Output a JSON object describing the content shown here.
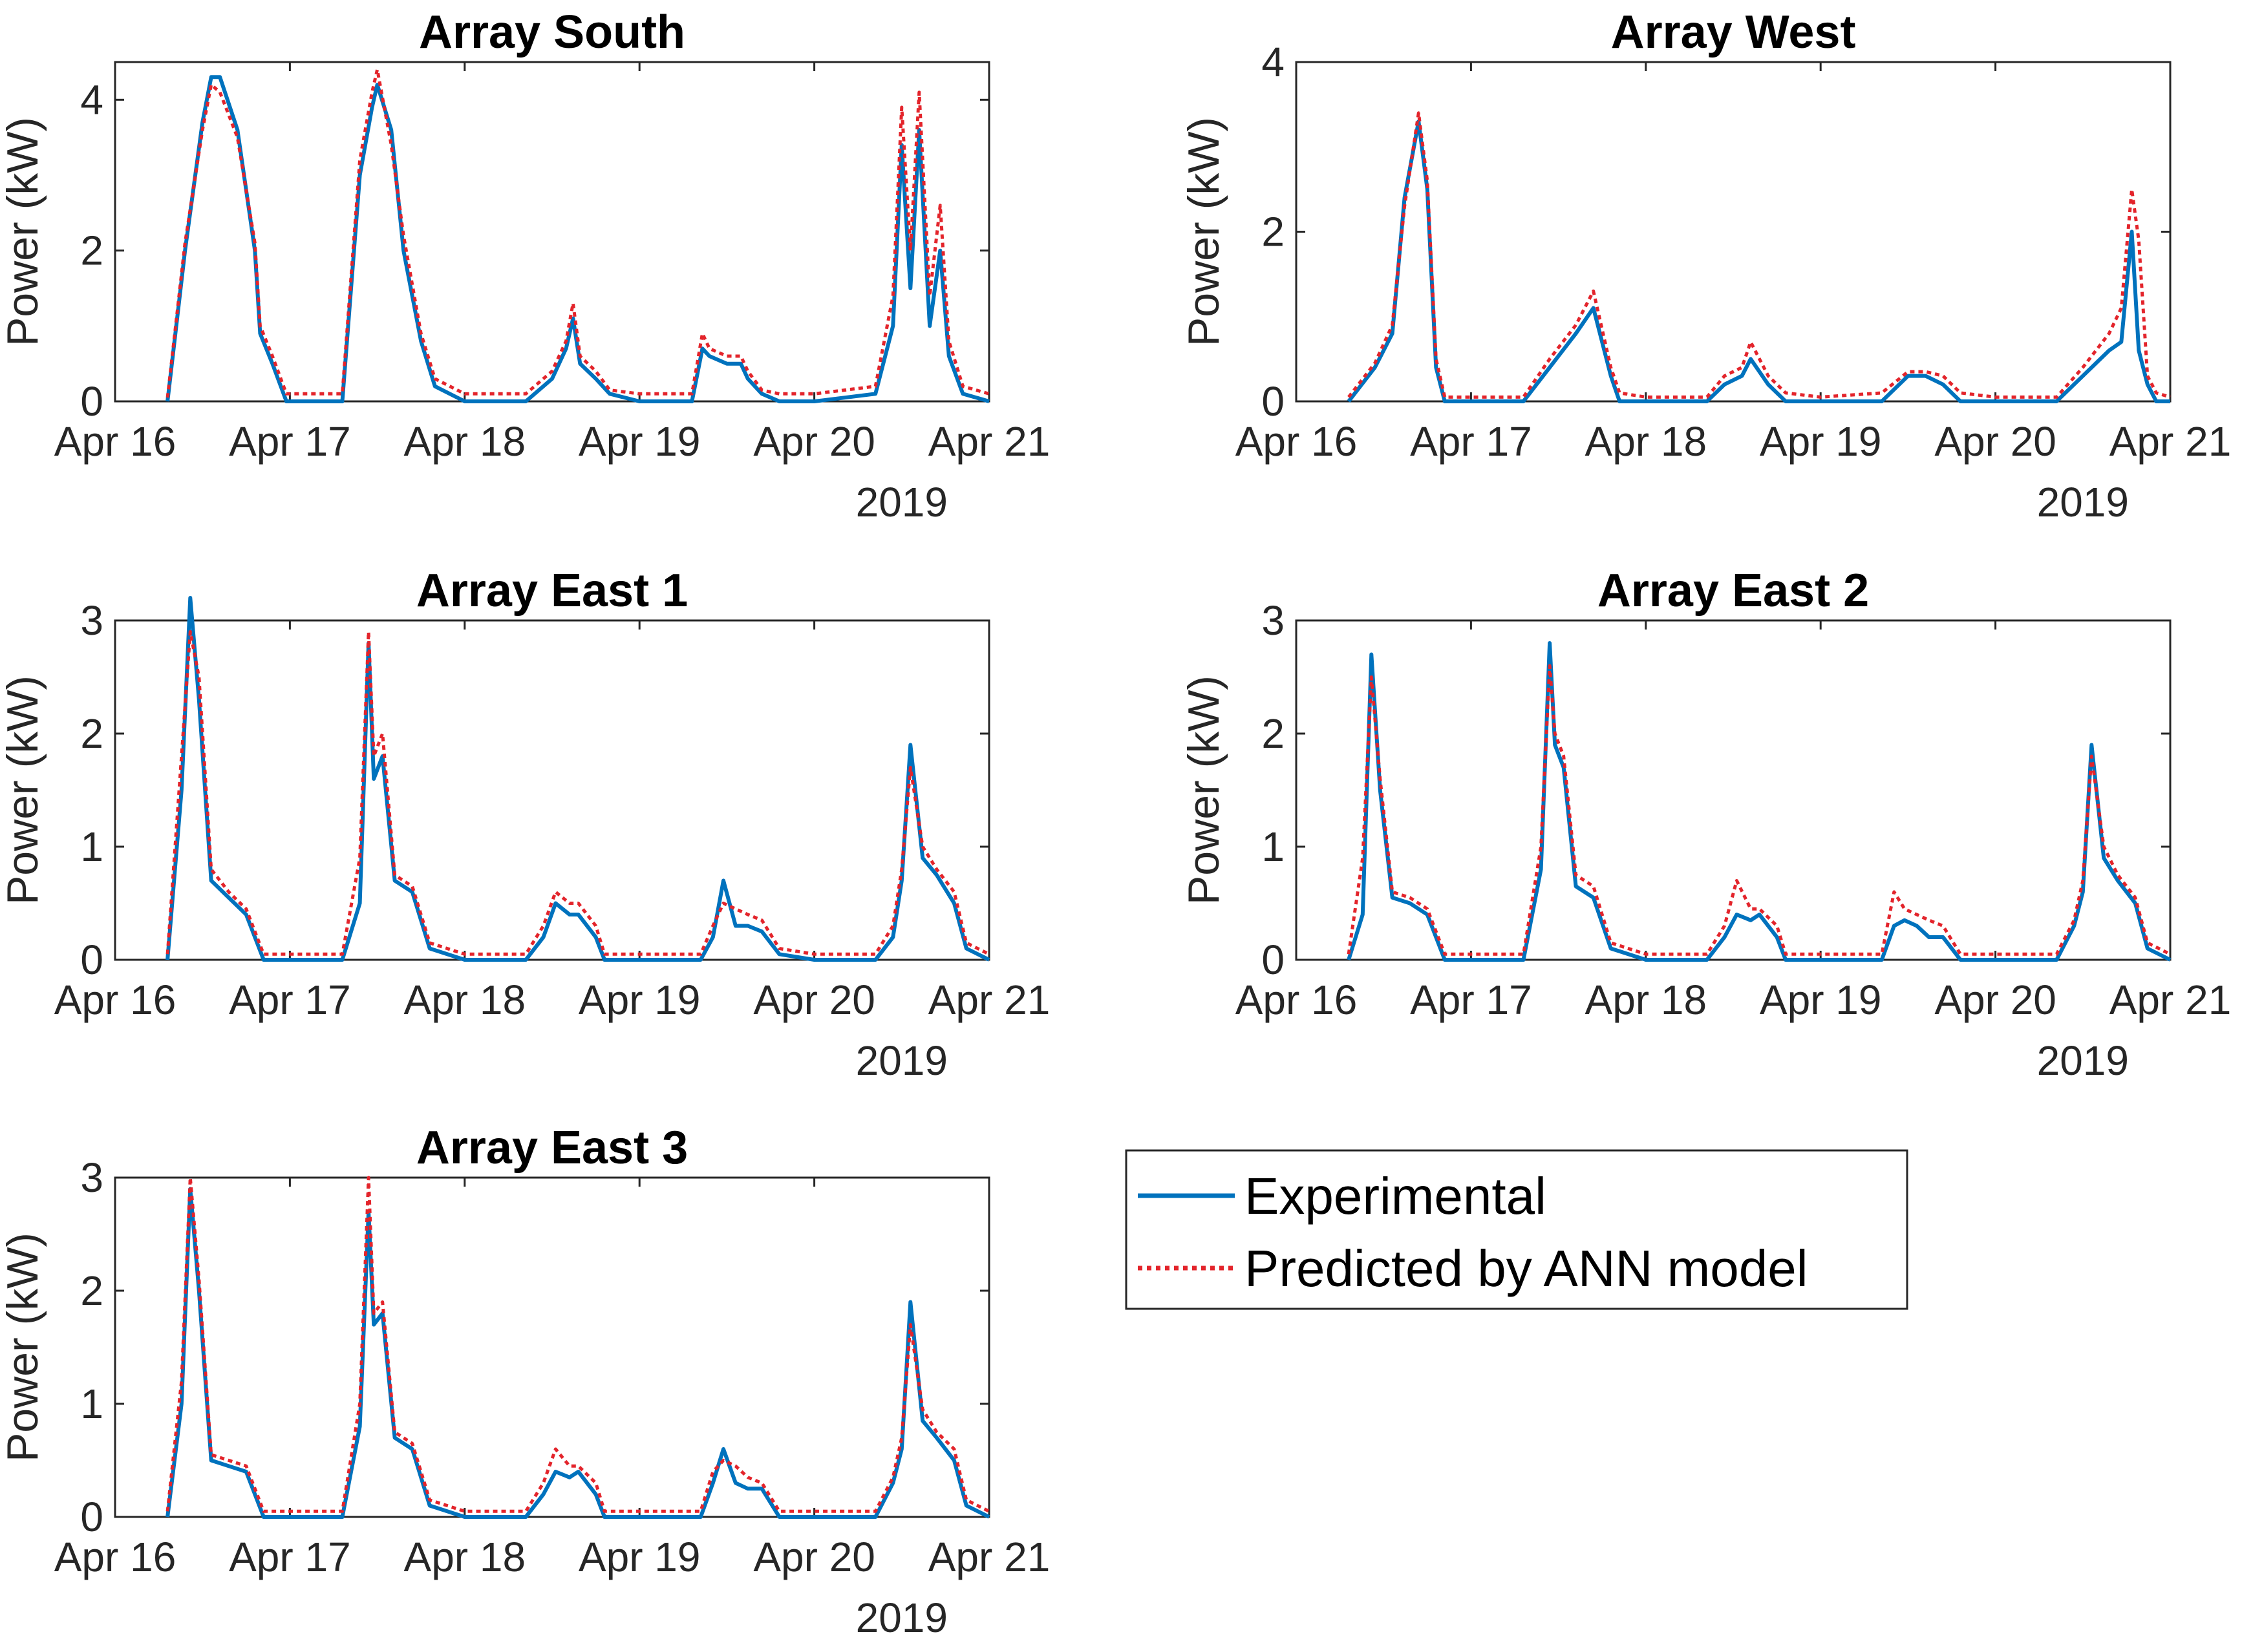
{
  "chart_data": [
    {
      "type": "line",
      "title": "Array South",
      "ylabel": "Power (kW)",
      "xlabel": "2019",
      "ylim": [
        0,
        4.5
      ],
      "yticks": [
        "0",
        "2",
        "4"
      ],
      "ytick_values": [
        0,
        2,
        4
      ],
      "xlim": [
        16,
        21
      ],
      "x_ticks": [
        "Apr 16",
        "Apr 17",
        "Apr 18",
        "Apr 19",
        "Apr 20",
        "Apr 21"
      ],
      "series": [
        {
          "name": "Experimental",
          "x": [
            16.3,
            16.4,
            16.5,
            16.55,
            16.6,
            16.7,
            16.8,
            16.83,
            16.9,
            16.98,
            17.0,
            17.3,
            17.4,
            17.47,
            17.5,
            17.58,
            17.65,
            17.75,
            17.83,
            18.0,
            18.35,
            18.5,
            18.58,
            18.62,
            18.66,
            18.75,
            18.83,
            19.0,
            19.3,
            19.36,
            19.4,
            19.5,
            19.58,
            19.62,
            19.7,
            19.8,
            20.0,
            20.35,
            20.45,
            20.5,
            20.55,
            20.6,
            20.66,
            20.72,
            20.77,
            20.85,
            21.0
          ],
          "y": [
            0,
            2.0,
            3.7,
            4.3,
            4.3,
            3.6,
            2.0,
            0.9,
            0.5,
            0,
            0,
            0,
            3.0,
            3.9,
            4.2,
            3.6,
            2.0,
            0.8,
            0.2,
            0,
            0,
            0.3,
            0.7,
            1.1,
            0.5,
            0.3,
            0.1,
            0,
            0,
            0.7,
            0.6,
            0.5,
            0.5,
            0.3,
            0.1,
            0,
            0,
            0.1,
            1.0,
            3.4,
            1.5,
            3.6,
            1.0,
            2.0,
            0.6,
            0.1,
            0
          ]
        },
        {
          "name": "Predicted by ANN model",
          "x": [
            16.3,
            16.4,
            16.5,
            16.55,
            16.6,
            16.7,
            16.8,
            16.83,
            16.9,
            16.98,
            17.0,
            17.3,
            17.4,
            17.47,
            17.5,
            17.58,
            17.65,
            17.75,
            17.83,
            18.0,
            18.35,
            18.5,
            18.58,
            18.62,
            18.66,
            18.75,
            18.83,
            19.0,
            19.3,
            19.36,
            19.4,
            19.5,
            19.58,
            19.62,
            19.7,
            19.8,
            20.0,
            20.35,
            20.45,
            20.5,
            20.55,
            20.6,
            20.66,
            20.72,
            20.77,
            20.85,
            21.0
          ],
          "y": [
            0.05,
            2.1,
            3.6,
            4.2,
            4.1,
            3.5,
            2.1,
            1.0,
            0.6,
            0.1,
            0.1,
            0.1,
            3.2,
            4.1,
            4.4,
            3.4,
            2.2,
            0.9,
            0.3,
            0.1,
            0.1,
            0.4,
            0.8,
            1.3,
            0.6,
            0.4,
            0.15,
            0.1,
            0.1,
            0.9,
            0.7,
            0.6,
            0.6,
            0.4,
            0.15,
            0.1,
            0.1,
            0.2,
            1.4,
            3.9,
            2.0,
            4.1,
            1.4,
            2.6,
            0.8,
            0.2,
            0.1
          ]
        }
      ]
    },
    {
      "type": "line",
      "title": "Array West",
      "ylabel": "Power (kW)",
      "xlabel": "2019",
      "ylim": [
        0,
        4
      ],
      "yticks": [
        "0",
        "2",
        "4"
      ],
      "ytick_values": [
        0,
        2,
        4
      ],
      "xlim": [
        16,
        21
      ],
      "x_ticks": [
        "Apr 16",
        "Apr 17",
        "Apr 18",
        "Apr 19",
        "Apr 20",
        "Apr 21"
      ],
      "series": [
        {
          "name": "Experimental",
          "x": [
            16.3,
            16.45,
            16.55,
            16.62,
            16.7,
            16.75,
            16.8,
            16.85,
            16.9,
            17.0,
            17.3,
            17.45,
            17.6,
            17.7,
            17.8,
            17.85,
            18.0,
            18.35,
            18.45,
            18.55,
            18.6,
            18.7,
            18.8,
            19.0,
            19.35,
            19.5,
            19.6,
            19.7,
            19.8,
            20.0,
            20.35,
            20.5,
            20.65,
            20.72,
            20.78,
            20.82,
            20.87,
            20.92,
            21.0
          ],
          "y": [
            0,
            0.4,
            0.8,
            2.4,
            3.3,
            2.5,
            0.4,
            0,
            0,
            0,
            0,
            0.4,
            0.8,
            1.1,
            0.3,
            0,
            0,
            0,
            0.2,
            0.3,
            0.5,
            0.2,
            0,
            0,
            0,
            0.3,
            0.3,
            0.2,
            0,
            0,
            0,
            0.3,
            0.6,
            0.7,
            2.0,
            0.6,
            0.2,
            0,
            0
          ]
        },
        {
          "name": "Predicted by ANN model",
          "x": [
            16.3,
            16.45,
            16.55,
            16.62,
            16.7,
            16.75,
            16.8,
            16.85,
            16.9,
            17.0,
            17.3,
            17.45,
            17.6,
            17.7,
            17.8,
            17.85,
            18.0,
            18.35,
            18.45,
            18.55,
            18.6,
            18.7,
            18.8,
            19.0,
            19.35,
            19.5,
            19.6,
            19.7,
            19.8,
            20.0,
            20.35,
            20.5,
            20.65,
            20.72,
            20.78,
            20.82,
            20.87,
            20.92,
            21.0
          ],
          "y": [
            0.05,
            0.45,
            0.9,
            2.3,
            3.4,
            2.6,
            0.5,
            0.05,
            0.05,
            0.05,
            0.05,
            0.5,
            0.9,
            1.3,
            0.4,
            0.1,
            0.05,
            0.05,
            0.3,
            0.4,
            0.7,
            0.3,
            0.1,
            0.05,
            0.1,
            0.35,
            0.35,
            0.3,
            0.1,
            0.05,
            0.05,
            0.4,
            0.8,
            1.1,
            2.5,
            1.9,
            0.3,
            0.1,
            0.05
          ]
        }
      ]
    },
    {
      "type": "line",
      "title": "Array East 1",
      "ylabel": "Power (kW)",
      "xlabel": "2019",
      "ylim": [
        0,
        3
      ],
      "yticks": [
        "0",
        "1",
        "2",
        "3"
      ],
      "ytick_values": [
        0,
        1,
        2,
        3
      ],
      "xlim": [
        16,
        21
      ],
      "x_ticks": [
        "Apr 16",
        "Apr 17",
        "Apr 18",
        "Apr 19",
        "Apr 20",
        "Apr 21"
      ],
      "series": [
        {
          "name": "Experimental",
          "x": [
            16.3,
            16.38,
            16.43,
            16.48,
            16.55,
            16.65,
            16.75,
            16.85,
            17.0,
            17.3,
            17.4,
            17.45,
            17.48,
            17.53,
            17.6,
            17.7,
            17.8,
            18.0,
            18.35,
            18.45,
            18.52,
            18.6,
            18.65,
            18.75,
            18.8,
            19.0,
            19.35,
            19.42,
            19.48,
            19.55,
            19.62,
            19.7,
            19.8,
            20.0,
            20.35,
            20.45,
            20.5,
            20.55,
            20.62,
            20.7,
            20.8,
            20.87,
            21.0
          ],
          "y": [
            0,
            1.5,
            3.2,
            2.3,
            0.7,
            0.55,
            0.4,
            0,
            0,
            0,
            0.5,
            2.8,
            1.6,
            1.8,
            0.7,
            0.6,
            0.1,
            0,
            0,
            0.2,
            0.5,
            0.4,
            0.4,
            0.2,
            0,
            0,
            0,
            0.2,
            0.7,
            0.3,
            0.3,
            0.25,
            0.05,
            0,
            0,
            0.2,
            0.7,
            1.9,
            0.9,
            0.75,
            0.5,
            0.1,
            0
          ]
        },
        {
          "name": "Predicted by ANN model",
          "x": [
            16.3,
            16.38,
            16.43,
            16.48,
            16.55,
            16.65,
            16.75,
            16.85,
            17.0,
            17.3,
            17.4,
            17.45,
            17.48,
            17.53,
            17.6,
            17.7,
            17.8,
            18.0,
            18.35,
            18.45,
            18.52,
            18.6,
            18.65,
            18.75,
            18.8,
            19.0,
            19.35,
            19.42,
            19.48,
            19.55,
            19.62,
            19.7,
            19.8,
            20.0,
            20.35,
            20.45,
            20.5,
            20.55,
            20.62,
            20.7,
            20.8,
            20.87,
            21.0
          ],
          "y": [
            0.05,
            1.8,
            2.9,
            2.5,
            0.8,
            0.6,
            0.45,
            0.05,
            0.05,
            0.05,
            0.9,
            2.9,
            1.8,
            2.0,
            0.75,
            0.65,
            0.15,
            0.05,
            0.05,
            0.3,
            0.6,
            0.5,
            0.5,
            0.3,
            0.05,
            0.05,
            0.05,
            0.3,
            0.5,
            0.45,
            0.4,
            0.35,
            0.1,
            0.05,
            0.05,
            0.3,
            0.8,
            1.7,
            1.0,
            0.8,
            0.6,
            0.15,
            0.05
          ]
        }
      ]
    },
    {
      "type": "line",
      "title": "Array East 2",
      "ylabel": "Power (kW)",
      "xlabel": "2019",
      "ylim": [
        0,
        3
      ],
      "yticks": [
        "0",
        "1",
        "2",
        "3"
      ],
      "ytick_values": [
        0,
        1,
        2,
        3
      ],
      "xlim": [
        16,
        21
      ],
      "x_ticks": [
        "Apr 16",
        "Apr 17",
        "Apr 18",
        "Apr 19",
        "Apr 20",
        "Apr 21"
      ],
      "series": [
        {
          "name": "Experimental",
          "x": [
            16.3,
            16.38,
            16.43,
            16.48,
            16.55,
            16.65,
            16.75,
            16.85,
            17.0,
            17.3,
            17.4,
            17.45,
            17.48,
            17.53,
            17.6,
            17.7,
            17.8,
            18.0,
            18.35,
            18.45,
            18.52,
            18.6,
            18.65,
            18.75,
            18.8,
            19.0,
            19.35,
            19.42,
            19.48,
            19.55,
            19.62,
            19.7,
            19.8,
            20.0,
            20.35,
            20.45,
            20.5,
            20.55,
            20.62,
            20.7,
            20.8,
            20.87,
            21.0
          ],
          "y": [
            0,
            0.4,
            2.7,
            1.5,
            0.55,
            0.5,
            0.4,
            0,
            0,
            0,
            0.8,
            2.8,
            1.9,
            1.7,
            0.65,
            0.55,
            0.1,
            0,
            0,
            0.2,
            0.4,
            0.35,
            0.4,
            0.2,
            0,
            0,
            0,
            0.3,
            0.35,
            0.3,
            0.2,
            0.2,
            0,
            0,
            0,
            0.3,
            0.6,
            1.9,
            0.9,
            0.7,
            0.5,
            0.1,
            0
          ]
        },
        {
          "name": "Predicted by ANN model",
          "x": [
            16.3,
            16.38,
            16.43,
            16.48,
            16.55,
            16.65,
            16.75,
            16.85,
            17.0,
            17.3,
            17.4,
            17.45,
            17.48,
            17.53,
            17.6,
            17.7,
            17.8,
            18.0,
            18.35,
            18.45,
            18.52,
            18.6,
            18.65,
            18.75,
            18.8,
            19.0,
            19.35,
            19.42,
            19.48,
            19.55,
            19.62,
            19.7,
            19.8,
            20.0,
            20.35,
            20.45,
            20.5,
            20.55,
            20.62,
            20.7,
            20.8,
            20.87,
            21.0
          ],
          "y": [
            0.05,
            0.9,
            2.5,
            1.6,
            0.6,
            0.55,
            0.45,
            0.05,
            0.05,
            0.05,
            1.0,
            2.6,
            2.0,
            1.8,
            0.75,
            0.65,
            0.15,
            0.05,
            0.05,
            0.3,
            0.7,
            0.45,
            0.45,
            0.3,
            0.05,
            0.05,
            0.05,
            0.6,
            0.45,
            0.4,
            0.35,
            0.3,
            0.05,
            0.05,
            0.05,
            0.35,
            0.7,
            1.8,
            1.0,
            0.75,
            0.55,
            0.15,
            0.05
          ]
        }
      ]
    },
    {
      "type": "line",
      "title": "Array East 3",
      "ylabel": "Power (kW)",
      "xlabel": "2019",
      "ylim": [
        0,
        3
      ],
      "yticks": [
        "0",
        "1",
        "2",
        "3"
      ],
      "ytick_values": [
        0,
        1,
        2,
        3
      ],
      "xlim": [
        16,
        21
      ],
      "x_ticks": [
        "Apr 16",
        "Apr 17",
        "Apr 18",
        "Apr 19",
        "Apr 20",
        "Apr 21"
      ],
      "series": [
        {
          "name": "Experimental",
          "x": [
            16.3,
            16.38,
            16.43,
            16.48,
            16.55,
            16.65,
            16.75,
            16.85,
            17.0,
            17.3,
            17.4,
            17.45,
            17.48,
            17.53,
            17.6,
            17.7,
            17.8,
            18.0,
            18.35,
            18.45,
            18.52,
            18.6,
            18.65,
            18.75,
            18.8,
            19.0,
            19.35,
            19.42,
            19.48,
            19.55,
            19.62,
            19.7,
            19.8,
            20.0,
            20.35,
            20.45,
            20.5,
            20.55,
            20.62,
            20.7,
            20.8,
            20.87,
            21.0
          ],
          "y": [
            0,
            1.0,
            2.9,
            2.0,
            0.5,
            0.45,
            0.4,
            0,
            0,
            0,
            0.8,
            2.7,
            1.7,
            1.8,
            0.7,
            0.6,
            0.1,
            0,
            0,
            0.2,
            0.4,
            0.35,
            0.4,
            0.2,
            0,
            0,
            0,
            0.3,
            0.6,
            0.3,
            0.25,
            0.25,
            0,
            0,
            0,
            0.3,
            0.6,
            1.9,
            0.85,
            0.7,
            0.5,
            0.1,
            0
          ]
        },
        {
          "name": "Predicted by ANN model",
          "x": [
            16.3,
            16.38,
            16.43,
            16.48,
            16.55,
            16.65,
            16.75,
            16.85,
            17.0,
            17.3,
            17.4,
            17.45,
            17.48,
            17.53,
            17.6,
            17.7,
            17.8,
            18.0,
            18.35,
            18.45,
            18.52,
            18.6,
            18.65,
            18.75,
            18.8,
            19.0,
            19.35,
            19.42,
            19.48,
            19.55,
            19.62,
            19.7,
            19.8,
            20.0,
            20.35,
            20.45,
            20.5,
            20.55,
            20.62,
            20.7,
            20.8,
            20.87,
            21.0
          ],
          "y": [
            0.05,
            1.2,
            3.0,
            2.1,
            0.55,
            0.5,
            0.45,
            0.05,
            0.05,
            0.05,
            1.0,
            3.0,
            1.8,
            1.9,
            0.75,
            0.65,
            0.15,
            0.05,
            0.05,
            0.3,
            0.6,
            0.45,
            0.45,
            0.3,
            0.05,
            0.05,
            0.05,
            0.4,
            0.5,
            0.45,
            0.35,
            0.3,
            0.05,
            0.05,
            0.05,
            0.35,
            0.7,
            1.7,
            0.95,
            0.75,
            0.6,
            0.15,
            0.05
          ]
        }
      ]
    }
  ],
  "legend": {
    "experimental_label": "Experimental",
    "predicted_label": "Predicted by ANN model"
  },
  "colors": {
    "experimental": "#0072BD",
    "predicted": "#E3242B",
    "axis": "#262626"
  }
}
